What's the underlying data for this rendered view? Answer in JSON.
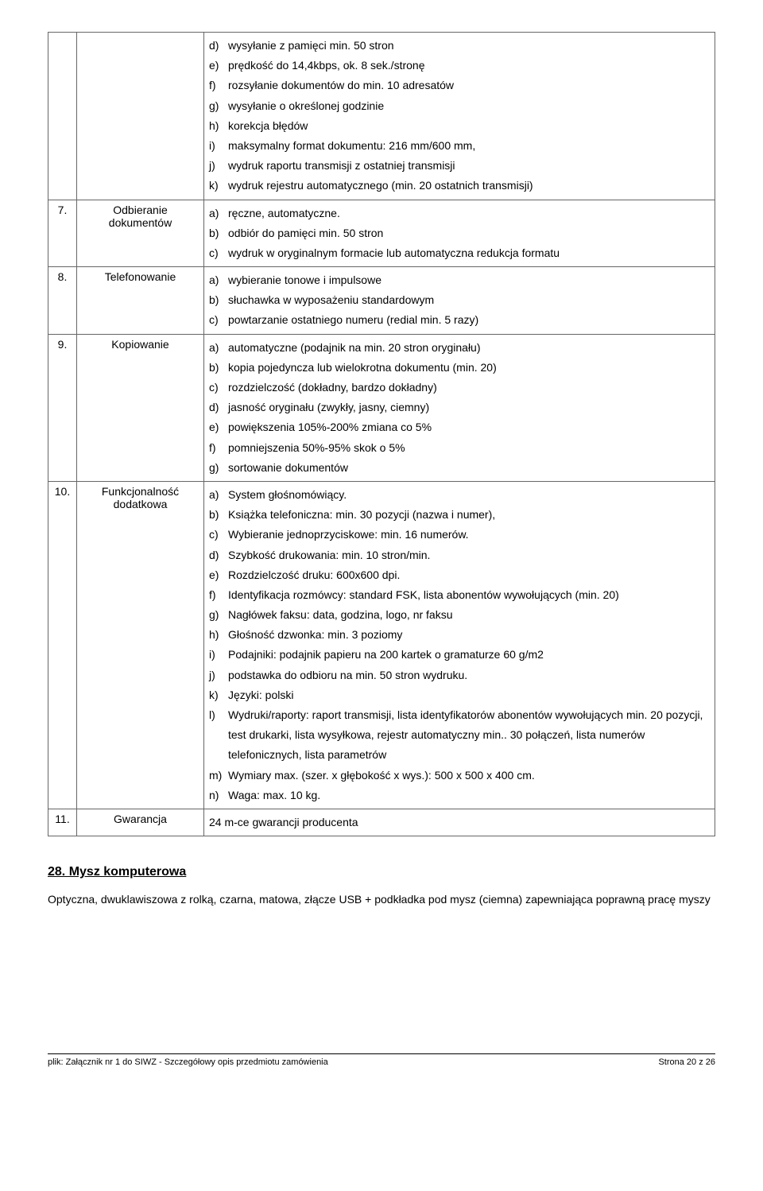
{
  "rows": [
    {
      "num": "",
      "label": "",
      "items": [
        {
          "l": "d)",
          "t": "wysyłanie z pamięci min. 50 stron"
        },
        {
          "l": "e)",
          "t": "prędkość do 14,4kbps, ok. 8 sek./stronę"
        },
        {
          "l": "f)",
          "t": "rozsyłanie dokumentów do min. 10 adresatów"
        },
        {
          "l": "g)",
          "t": "wysyłanie o określonej godzinie"
        },
        {
          "l": "h)",
          "t": "korekcja błędów"
        },
        {
          "l": "i)",
          "t": "maksymalny format dokumentu: 216 mm/600 mm,"
        },
        {
          "l": "j)",
          "t": "wydruk raportu transmisji z ostatniej transmisji"
        },
        {
          "l": "k)",
          "t": "wydruk rejestru automatycznego (min. 20 ostatnich transmisji)"
        }
      ]
    },
    {
      "num": "7.",
      "label": "Odbieranie dokumentów",
      "items": [
        {
          "l": "a)",
          "t": "ręczne, automatyczne."
        },
        {
          "l": "b)",
          "t": "odbiór do pamięci min. 50 stron"
        },
        {
          "l": "c)",
          "t": "wydruk w oryginalnym formacie lub automatyczna redukcja formatu"
        }
      ]
    },
    {
      "num": "8.",
      "label": "Telefonowanie",
      "items": [
        {
          "l": "a)",
          "t": "wybieranie tonowe i impulsowe"
        },
        {
          "l": "b)",
          "t": "słuchawka w wyposażeniu standardowym"
        },
        {
          "l": "c)",
          "t": "powtarzanie ostatniego numeru (redial min. 5 razy)"
        }
      ]
    },
    {
      "num": "9.",
      "label": "Kopiowanie",
      "items": [
        {
          "l": "a)",
          "t": "automatyczne (podajnik na min. 20 stron oryginału)"
        },
        {
          "l": "b)",
          "t": "kopia pojedyncza lub wielokrotna dokumentu (min. 20)"
        },
        {
          "l": "c)",
          "t": "rozdzielczość (dokładny, bardzo dokładny)"
        },
        {
          "l": "d)",
          "t": "jasność oryginału (zwykły, jasny, ciemny)"
        },
        {
          "l": "e)",
          "t": "powiększenia 105%-200% zmiana co 5%"
        },
        {
          "l": "f)",
          "t": "pomniejszenia 50%-95% skok o 5%"
        },
        {
          "l": "g)",
          "t": "sortowanie dokumentów"
        }
      ]
    },
    {
      "num": "10.",
      "label": "Funkcjonalność dodatkowa",
      "items": [
        {
          "l": "a)",
          "t": "System głośnomówiący."
        },
        {
          "l": "b)",
          "t": "Książka telefoniczna: min. 30 pozycji (nazwa i numer),"
        },
        {
          "l": "c)",
          "t": "Wybieranie jednoprzyciskowe: min. 16 numerów."
        },
        {
          "l": "d)",
          "t": "Szybkość drukowania: min. 10 stron/min."
        },
        {
          "l": "e)",
          "t": "Rozdzielczość druku: 600x600 dpi."
        },
        {
          "l": "f)",
          "t": "Identyfikacja rozmówcy: standard FSK, lista abonentów wywołujących (min. 20)"
        },
        {
          "l": "g)",
          "t": "Nagłówek faksu: data, godzina, logo, nr faksu"
        },
        {
          "l": "h)",
          "t": "Głośność dzwonka: min. 3 poziomy"
        },
        {
          "l": "i)",
          "t": "Podajniki: podajnik papieru na 200 kartek o gramaturze 60 g/m2"
        },
        {
          "l": "j)",
          "t": "podstawka do odbioru na min. 50 stron wydruku."
        },
        {
          "l": "k)",
          "t": "Języki: polski"
        },
        {
          "l": "l)",
          "t": "Wydruki/raporty: raport transmisji, lista identyfikatorów abonentów wywołujących min. 20 pozycji, test drukarki, lista wysyłkowa, rejestr automatyczny min.. 30 połączeń, lista numerów telefonicznych, lista parametrów"
        },
        {
          "l": "m)",
          "t": "Wymiary max. (szer. x głębokość x wys.): 500 x 500 x 400 cm."
        },
        {
          "l": "n)",
          "t": "Waga: max. 10 kg."
        }
      ]
    },
    {
      "num": "11.",
      "label": "Gwarancja",
      "plain": "24 m-ce gwarancji producenta"
    }
  ],
  "section": {
    "title": "28. Mysz komputerowa",
    "body": "Optyczna, dwuklawiszowa z rolką, czarna, matowa, złącze USB + podkładka pod mysz (ciemna) zapewniająca poprawną pracę myszy"
  },
  "footer": {
    "left": "plik: Załącznik nr 1 do SIWZ - Szczegółowy opis przedmiotu zamówienia",
    "right": "Strona 20 z 26"
  }
}
